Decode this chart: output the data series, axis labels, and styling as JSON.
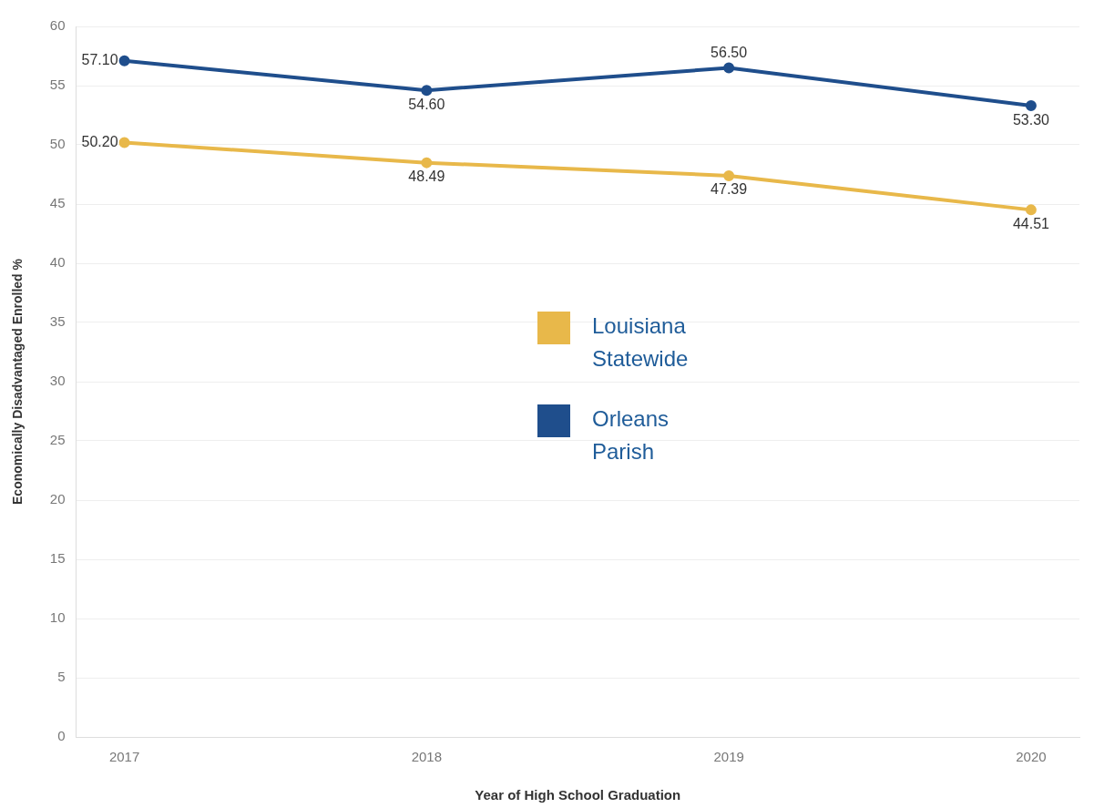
{
  "chart_data": {
    "type": "line",
    "xlabel": "Year of High School Graduation",
    "ylabel": "Economically Disadvantaged Enrolled %",
    "x": [
      2017,
      2018,
      2019,
      2020
    ],
    "xlim": [
      2016.84,
      2020.16
    ],
    "xticks": [
      2017,
      2018,
      2019,
      2020
    ],
    "ylim": [
      0,
      60
    ],
    "yticks": [
      0,
      5,
      10,
      15,
      20,
      25,
      30,
      35,
      40,
      45,
      50,
      55,
      60
    ],
    "grid": "y",
    "legend": "center",
    "marker": "circle",
    "line_style": "solid",
    "series": [
      {
        "name": "Louisiana Statewide",
        "color": "#e8b84a",
        "values": [
          50.2,
          48.49,
          47.39,
          44.51
        ],
        "value_labels": [
          "50.20",
          "48.49",
          "47.39",
          "44.51"
        ]
      },
      {
        "name": "Orleans Parish",
        "color": "#1f4e8c",
        "values": [
          57.1,
          54.6,
          56.5,
          53.3
        ],
        "value_labels": [
          "57.10",
          "54.60",
          "56.50",
          "53.30"
        ]
      }
    ]
  }
}
